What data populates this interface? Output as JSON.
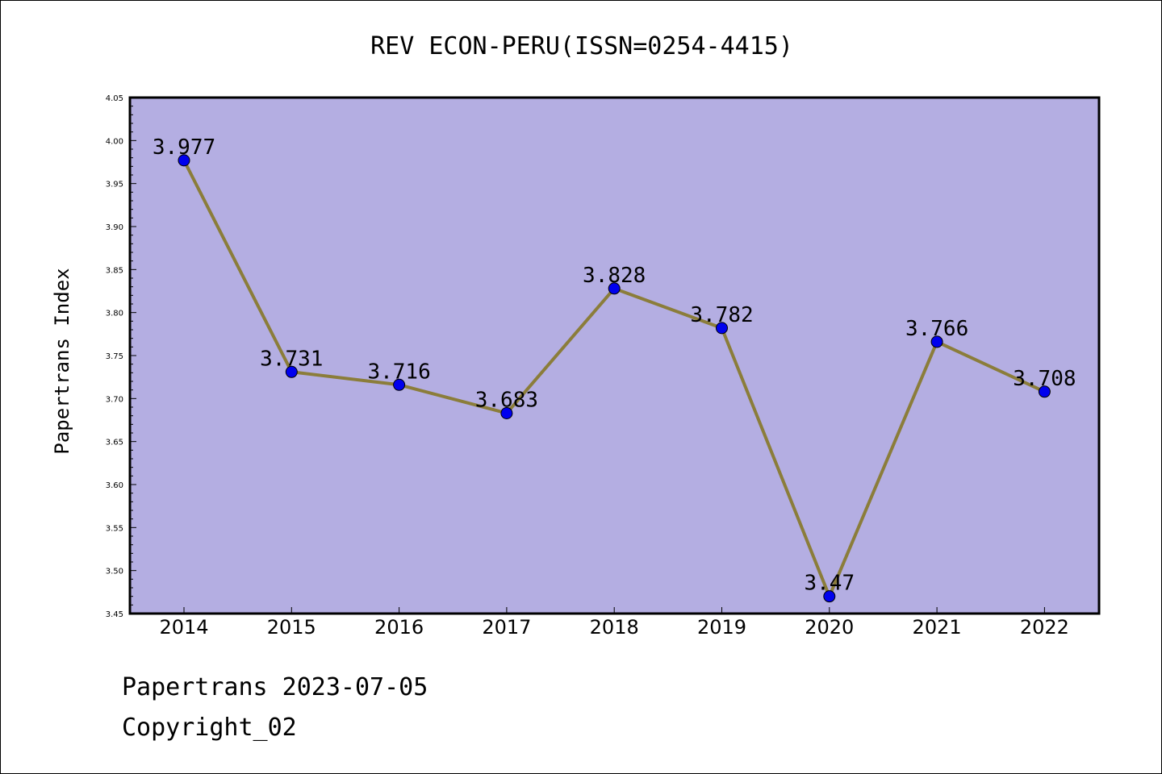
{
  "chart_data": {
    "type": "line",
    "title": "REV ECON-PERU(ISSN=0254-4415)",
    "ylabel": "Papertrans Index",
    "xlabel": "",
    "categories": [
      "2014",
      "2015",
      "2016",
      "2017",
      "2018",
      "2019",
      "2020",
      "2021",
      "2022"
    ],
    "values": [
      3.977,
      3.731,
      3.716,
      3.683,
      3.828,
      3.782,
      3.47,
      3.766,
      3.708
    ],
    "value_labels": [
      "3.977",
      "3.731",
      "3.716",
      "3.683",
      "3.828",
      "3.782",
      "3.47",
      "3.766",
      "3.708"
    ],
    "ylim": [
      3.45,
      4.05
    ],
    "yticks": [
      "3.45",
      "3.50",
      "3.55",
      "3.60",
      "3.65",
      "3.70",
      "3.75",
      "3.80",
      "3.85",
      "3.90",
      "3.95",
      "4.00",
      "4.05"
    ],
    "grid": false,
    "legend": "none",
    "colors": {
      "plot_background": "#b4aee2",
      "line": "#8b7d3a",
      "marker": "#0000ee"
    }
  },
  "footer": {
    "line1": "Papertrans 2023-07-05",
    "line2": "Copyright_02"
  }
}
